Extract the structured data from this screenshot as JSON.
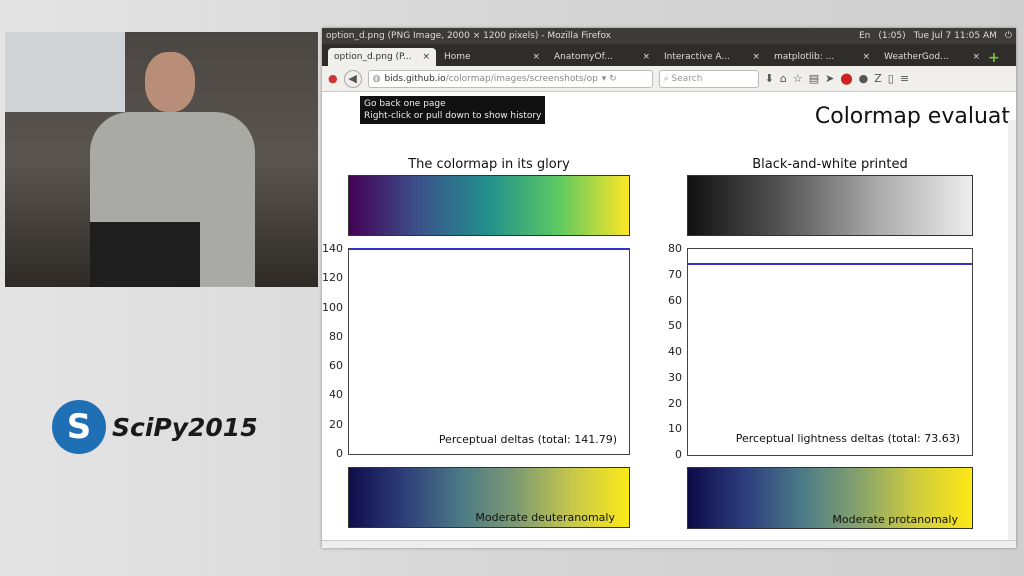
{
  "branding": {
    "logo_text": "SciPy2015"
  },
  "browser": {
    "window_title": "option_d.png (PNG Image, 2000 × 1200 pixels) - Mozilla Firefox",
    "system_tray": {
      "language": "En",
      "battery": "(1:05)",
      "clock": "Tue Jul 7 11:05 AM"
    },
    "tabs": [
      {
        "label": "option_d.png (P...",
        "active": true
      },
      {
        "label": "Home"
      },
      {
        "label": "AnatomyOf..."
      },
      {
        "label": "Interactive A..."
      },
      {
        "label": "matplotlib: ..."
      },
      {
        "label": "WeatherGod..."
      }
    ],
    "url_host": "bids.github.io",
    "url_path": "/colormap/images/screenshots/op",
    "search_placeholder": "Search",
    "tooltip": {
      "line1": "Go back one page",
      "line2": "Right-click or pull down to show history"
    }
  },
  "page": {
    "title": "Colormap evaluat"
  },
  "chart_data": [
    {
      "type": "colorbar",
      "title": "The colormap in its glory",
      "colors": [
        "#440154",
        "#3b528b",
        "#21918c",
        "#5ec962",
        "#fde725"
      ]
    },
    {
      "type": "colorbar",
      "title": "Black-and-white printed",
      "colors": [
        "#111111",
        "#555555",
        "#aaaaaa",
        "#eeeeee"
      ]
    },
    {
      "type": "line",
      "annotation": "Perceptual deltas (total: 141.79)",
      "ylim": [
        0,
        140
      ],
      "yticks": [
        0,
        20,
        40,
        60,
        80,
        100,
        120,
        140
      ],
      "series": [
        {
          "y_constant": 140
        }
      ],
      "color": "#3333cc"
    },
    {
      "type": "line",
      "annotation": "Perceptual lightness deltas (total: 73.63)",
      "ylim": [
        0,
        80
      ],
      "yticks": [
        0,
        10,
        20,
        30,
        40,
        50,
        60,
        70,
        80
      ],
      "series": [
        {
          "y_constant": 74
        }
      ],
      "color": "#3333cc"
    },
    {
      "type": "colorbar",
      "annotation": "Moderate deuteranomaly",
      "colors": [
        "#0f0d4a",
        "#2e3f7a",
        "#4c7a86",
        "#7f9b72",
        "#c8c84a",
        "#fbe918"
      ]
    },
    {
      "type": "colorbar",
      "annotation": "Moderate protanomaly",
      "colors": [
        "#0d0b48",
        "#2d3d7d",
        "#4b7a88",
        "#85a26c",
        "#cfcc3e",
        "#fde816"
      ]
    }
  ]
}
